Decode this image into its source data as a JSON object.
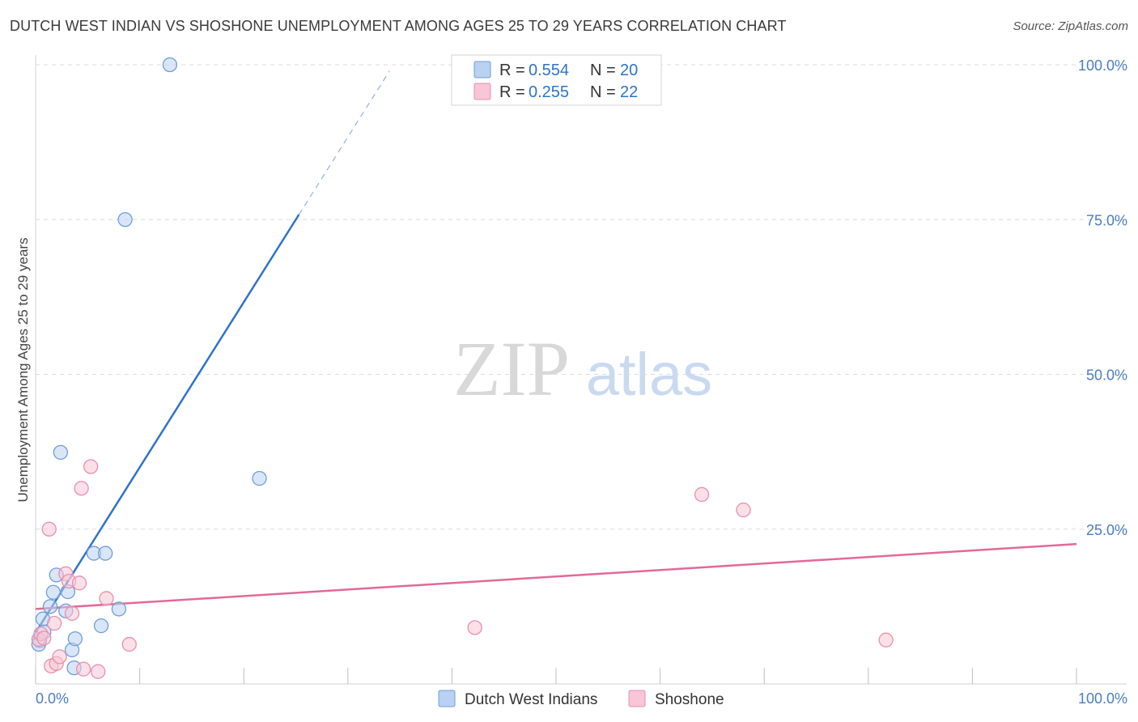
{
  "header": {
    "title": "DUTCH WEST INDIAN VS SHOSHONE UNEMPLOYMENT AMONG AGES 25 TO 29 YEARS CORRELATION CHART",
    "source": "Source: ZipAtlas.com"
  },
  "watermark": {
    "zip": "ZIP",
    "atlas": "atlas"
  },
  "colors": {
    "blue_fill": "#b9d1f2",
    "blue_stroke": "#6f9ed8",
    "blue_line": "#2f73c9",
    "pink_fill": "#f8c6d6",
    "pink_stroke": "#e98fad",
    "pink_line": "#e06a98",
    "grid": "#dcdcdc",
    "axis_text": "#4a7ec2"
  },
  "chart_data": {
    "type": "scatter",
    "title": "DUTCH WEST INDIAN VS SHOSHONE UNEMPLOYMENT AMONG AGES 25 TO 29 YEARS CORRELATION CHART",
    "xlabel": "",
    "ylabel": "Unemployment Among Ages 25 to 29 years",
    "xlim": [
      0,
      100
    ],
    "ylim": [
      0,
      100
    ],
    "x_tick_labels": [
      "0.0%",
      "100.0%"
    ],
    "y_ticks": [
      25,
      50,
      75,
      100
    ],
    "y_tick_labels": [
      "25.0%",
      "50.0%",
      "75.0%",
      "100.0%"
    ],
    "legend": {
      "rows": [
        {
          "r_label": "R =",
          "r_value": "0.554",
          "n_label": "N =",
          "n_value": "20"
        },
        {
          "r_label": "R =",
          "r_value": "0.255",
          "n_label": "N =",
          "n_value": "22"
        }
      ]
    },
    "series": [
      {
        "name": "Dutch West Indians",
        "r": 0.554,
        "n": 20,
        "points": [
          [
            0.4,
            7
          ],
          [
            0.7,
            10.5
          ],
          [
            0.8,
            8.4
          ],
          [
            1.4,
            12.5
          ],
          [
            1.7,
            14.8
          ],
          [
            2.0,
            17.6
          ],
          [
            2.4,
            37.4
          ],
          [
            2.9,
            11.8
          ],
          [
            3.1,
            14.9
          ],
          [
            3.5,
            5.5
          ],
          [
            3.7,
            2.6
          ],
          [
            3.8,
            7.3
          ],
          [
            5.6,
            21.1
          ],
          [
            6.3,
            9.4
          ],
          [
            6.7,
            21.1
          ],
          [
            8.0,
            12.1
          ],
          [
            8.6,
            75.0
          ],
          [
            12.9,
            100.0
          ],
          [
            21.5,
            33.2
          ],
          [
            0.3,
            6.4
          ]
        ],
        "trend": {
          "x0": 0,
          "y0": 8.3,
          "x1": 25.3,
          "y1": 75.8,
          "dash_to_x": 34,
          "dash_to_y": 99
        }
      },
      {
        "name": "Shoshone",
        "r": 0.255,
        "n": 22,
        "points": [
          [
            0.3,
            7.2
          ],
          [
            0.5,
            8.1
          ],
          [
            0.8,
            7.4
          ],
          [
            1.3,
            25.0
          ],
          [
            1.5,
            2.9
          ],
          [
            1.8,
            9.8
          ],
          [
            2.0,
            3.3
          ],
          [
            2.3,
            4.4
          ],
          [
            2.9,
            17.8
          ],
          [
            3.2,
            16.6
          ],
          [
            3.5,
            11.4
          ],
          [
            4.2,
            16.3
          ],
          [
            4.4,
            31.6
          ],
          [
            4.6,
            2.4
          ],
          [
            5.3,
            35.1
          ],
          [
            6.0,
            2.0
          ],
          [
            6.8,
            13.8
          ],
          [
            9.0,
            6.4
          ],
          [
            42.2,
            9.1
          ],
          [
            64.0,
            30.6
          ],
          [
            68.0,
            28.1
          ],
          [
            81.7,
            7.1
          ]
        ],
        "trend": {
          "x0": 0,
          "y0": 12.1,
          "x1": 100,
          "y1": 22.6
        }
      }
    ]
  }
}
